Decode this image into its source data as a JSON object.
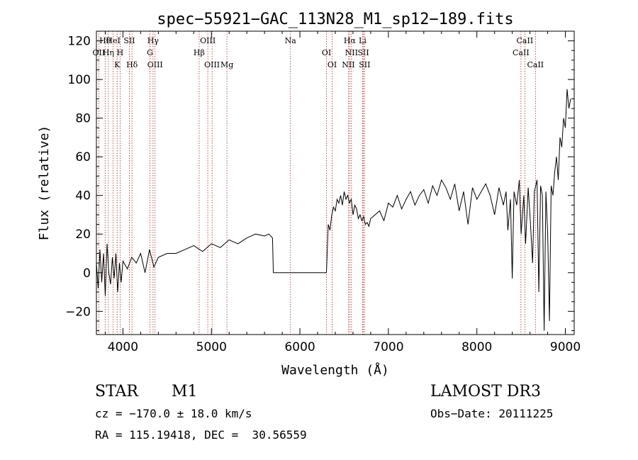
{
  "chart_data": {
    "type": "line",
    "title": "spec−55921−GAC_113N28_M1_sp12−189.fits",
    "xlabel": "Wavelength (Å)",
    "ylabel": "Flux (relative)",
    "xlim": [
      3700,
      9100
    ],
    "ylim": [
      -32,
      125
    ],
    "xticks": [
      4000,
      5000,
      6000,
      7000,
      8000,
      9000
    ],
    "yticks": [
      -20,
      0,
      20,
      40,
      60,
      80,
      100,
      120
    ],
    "grid": false,
    "series": [
      {
        "name": "",
        "x": [
          3700,
          3720,
          3740,
          3760,
          3780,
          3800,
          3820,
          3840,
          3860,
          3880,
          3900,
          3920,
          3940,
          3960,
          3980,
          4000,
          4050,
          4100,
          4150,
          4200,
          4250,
          4300,
          4350,
          4400,
          4500,
          4600,
          4700,
          4800,
          4900,
          5000,
          5100,
          5200,
          5300,
          5400,
          5500,
          5600,
          5650,
          5690,
          5700,
          5800,
          5900,
          6000,
          6100,
          6200,
          6280,
          6300,
          6320,
          6340,
          6360,
          6380,
          6400,
          6420,
          6440,
          6460,
          6480,
          6500,
          6520,
          6540,
          6560,
          6580,
          6600,
          6620,
          6640,
          6660,
          6680,
          6700,
          6720,
          6740,
          6760,
          6780,
          6800,
          6850,
          6900,
          6950,
          7000,
          7050,
          7100,
          7150,
          7200,
          7250,
          7300,
          7350,
          7400,
          7450,
          7500,
          7550,
          7600,
          7650,
          7700,
          7750,
          7800,
          7850,
          7900,
          7950,
          8000,
          8050,
          8100,
          8150,
          8200,
          8250,
          8300,
          8330,
          8350,
          8380,
          8400,
          8420,
          8450,
          8480,
          8500,
          8530,
          8550,
          8580,
          8600,
          8630,
          8650,
          8680,
          8700,
          8720,
          8740,
          8760,
          8780,
          8800,
          8820,
          8840,
          8860,
          8880,
          8900,
          8920,
          8940,
          8960,
          8980,
          9000,
          9020,
          9040,
          9060
        ],
        "y": [
          5,
          -8,
          12,
          -5,
          10,
          -12,
          15,
          0,
          -6,
          8,
          -3,
          10,
          -10,
          5,
          -5,
          6,
          2,
          8,
          5,
          10,
          0,
          12,
          3,
          8,
          10,
          10,
          12,
          14,
          11,
          15,
          13,
          17,
          15,
          18,
          20,
          19,
          20,
          18,
          0,
          0,
          0,
          0,
          0,
          0,
          0,
          0,
          25,
          22,
          30,
          34,
          32,
          38,
          36,
          40,
          35,
          42,
          38,
          40,
          36,
          38,
          30,
          35,
          33,
          28,
          30,
          27,
          29,
          25,
          26,
          24,
          28,
          30,
          32,
          27,
          36,
          34,
          40,
          33,
          38,
          42,
          35,
          40,
          43,
          36,
          45,
          40,
          48,
          44,
          38,
          46,
          32,
          42,
          25,
          44,
          38,
          42,
          46,
          40,
          30,
          44,
          35,
          42,
          22,
          38,
          -3,
          42,
          35,
          48,
          20,
          40,
          15,
          44,
          30,
          5,
          42,
          48,
          -10,
          45,
          40,
          -30,
          42,
          20,
          -25,
          45,
          40,
          52,
          60,
          48,
          70,
          65,
          80,
          75,
          95,
          85,
          90
        ],
        "color": "#000000"
      }
    ],
    "annotations": [
      {
        "label": "Hθ",
        "x": 3798
      },
      {
        "label": "OII",
        "x": 3727
      },
      {
        "label": "K",
        "x": 3934
      },
      {
        "label": "HeI",
        "x": 3889
      },
      {
        "label": "Hη",
        "x": 3835
      },
      {
        "label": "Hδ",
        "x": 4102
      },
      {
        "label": "SII",
        "x": 4072
      },
      {
        "label": "H",
        "x": 3968
      },
      {
        "label": "OIII",
        "x": 4363
      },
      {
        "label": "Hγ",
        "x": 4340
      },
      {
        "label": "G",
        "x": 4305
      },
      {
        "label": "OIII",
        "x": 5007
      },
      {
        "label": "OIII",
        "x": 4959
      },
      {
        "label": "Hβ",
        "x": 4861
      },
      {
        "label": "Mg",
        "x": 5175
      },
      {
        "label": "Na",
        "x": 5893
      },
      {
        "label": "OI",
        "x": 6300
      },
      {
        "label": "OI",
        "x": 6364
      },
      {
        "label": "Hα",
        "x": 6563
      },
      {
        "label": "SII",
        "x": 6717
      },
      {
        "label": "NII",
        "x": 6548
      },
      {
        "label": "Li",
        "x": 6708
      },
      {
        "label": "NII",
        "x": 6583
      },
      {
        "label": "SII",
        "x": 6731
      },
      {
        "label": "CaII",
        "x": 8542
      },
      {
        "label": "CaII",
        "x": 8498
      },
      {
        "label": "CaII",
        "x": 8662
      }
    ]
  },
  "info": {
    "object_type": "STAR",
    "subclass": "M1",
    "survey": "LAMOST DR3",
    "cz": "cz = −170.0 ± 18.0 km/s",
    "obs_date": "Obs−Date: 20111225",
    "radec": "RA = 115.19418, DEC =  30.56559"
  }
}
